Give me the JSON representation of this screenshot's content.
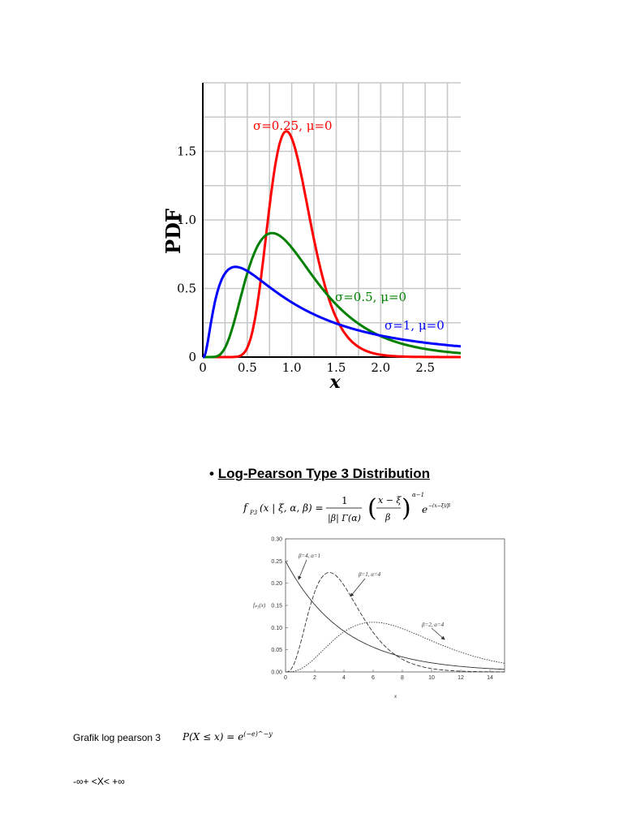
{
  "chart_data": [
    {
      "type": "line",
      "xlabel": "x",
      "ylabel": "PDF",
      "xlim": [
        0,
        2.9
      ],
      "ylim": [
        0,
        2.0
      ],
      "x_ticks": [
        "0",
        "0.5",
        "1.0",
        "1.5",
        "2.0",
        "2.5"
      ],
      "y_ticks": [
        "0",
        "0.5",
        "1.0",
        "1.5"
      ],
      "grid": true,
      "series": [
        {
          "name": "σ=0.25, μ=0",
          "color": "#ff0000"
        },
        {
          "name": "σ=0.5, μ=0",
          "color": "#008000"
        },
        {
          "name": "σ=1, μ=0",
          "color": "#0000ff"
        }
      ]
    },
    {
      "type": "line",
      "xlabel": "x",
      "ylabel": "fₚ₃(x)",
      "xlim": [
        0,
        15
      ],
      "ylim": [
        0,
        0.3
      ],
      "x_ticks": [
        "0",
        "2",
        "4",
        "6",
        "8",
        "10",
        "12",
        "14"
      ],
      "y_ticks": [
        "0.00",
        "0.05",
        "0.10",
        "0.15",
        "0.20",
        "0.25",
        "0.30"
      ],
      "series": [
        {
          "name": "β=4, α=1",
          "style": "solid"
        },
        {
          "name": "β=1, α=4",
          "style": "dashed"
        },
        {
          "name": "β=2, α=4",
          "style": "dotted"
        }
      ]
    }
  ],
  "doc": {
    "bullet": "•",
    "heading": "Log-Pearson Type 3 Distribution",
    "formula_lhs": "f",
    "formula_sub": "P3",
    "formula_args": "(x | ξ, α, β) =",
    "formula_num": "1",
    "formula_den": "|β| Γ(α)",
    "formula_frac_num": "x − ξ",
    "formula_frac_den": "β",
    "formula_exp": "α−1",
    "formula_e": "e",
    "formula_e_exp": "−(x−ξ)/β",
    "grafik_label": "Grafik log pearson 3",
    "grafik_formula": "P(X ≤ x) = e",
    "grafik_exp": "(−e)^−y",
    "range_text": "-∞+ <X< +∞"
  }
}
